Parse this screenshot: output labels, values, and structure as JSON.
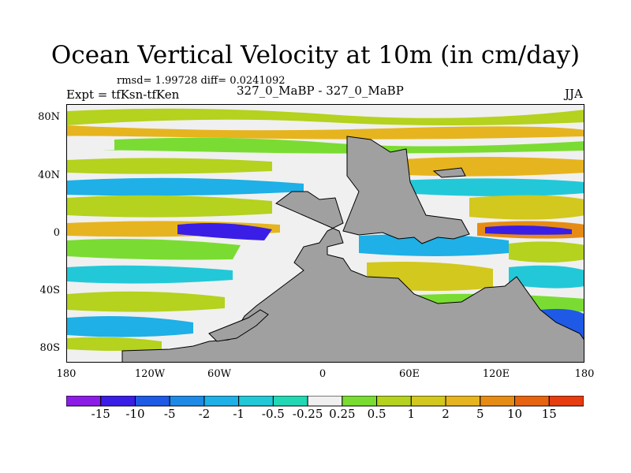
{
  "title": "Ocean Vertical Velocity at 10m (in cm/day)",
  "stats": "rmsd= 1.99728 diff= 0.0241092",
  "expt": "Expt = tfKsn-tfKen",
  "subtitle": "327_0_MaBP - 327_0_MaBP",
  "season": "JJA",
  "y_ticks": [
    "80N",
    "40N",
    "0",
    "40S",
    "80S"
  ],
  "x_ticks": [
    "180",
    "120W",
    "60W",
    "0",
    "60E",
    "120E",
    "180"
  ],
  "colorbar": {
    "labels": [
      "-15",
      "-10",
      "-5",
      "-2",
      "-1",
      "-0.5",
      "-0.25",
      "0.25",
      "0.5",
      "1",
      "2",
      "5",
      "10",
      "15"
    ],
    "colors": [
      "#8c1de6",
      "#3a1ee6",
      "#1e5ae6",
      "#1e8ae6",
      "#1eb0e6",
      "#22c8d8",
      "#22d8b4",
      "#f0f0f0",
      "#7adc32",
      "#b4d21e",
      "#d2c81e",
      "#e6b41e",
      "#e68c14",
      "#e6640f",
      "#e63c0f"
    ]
  },
  "colors": {
    "land": "#a0a0a0"
  }
}
